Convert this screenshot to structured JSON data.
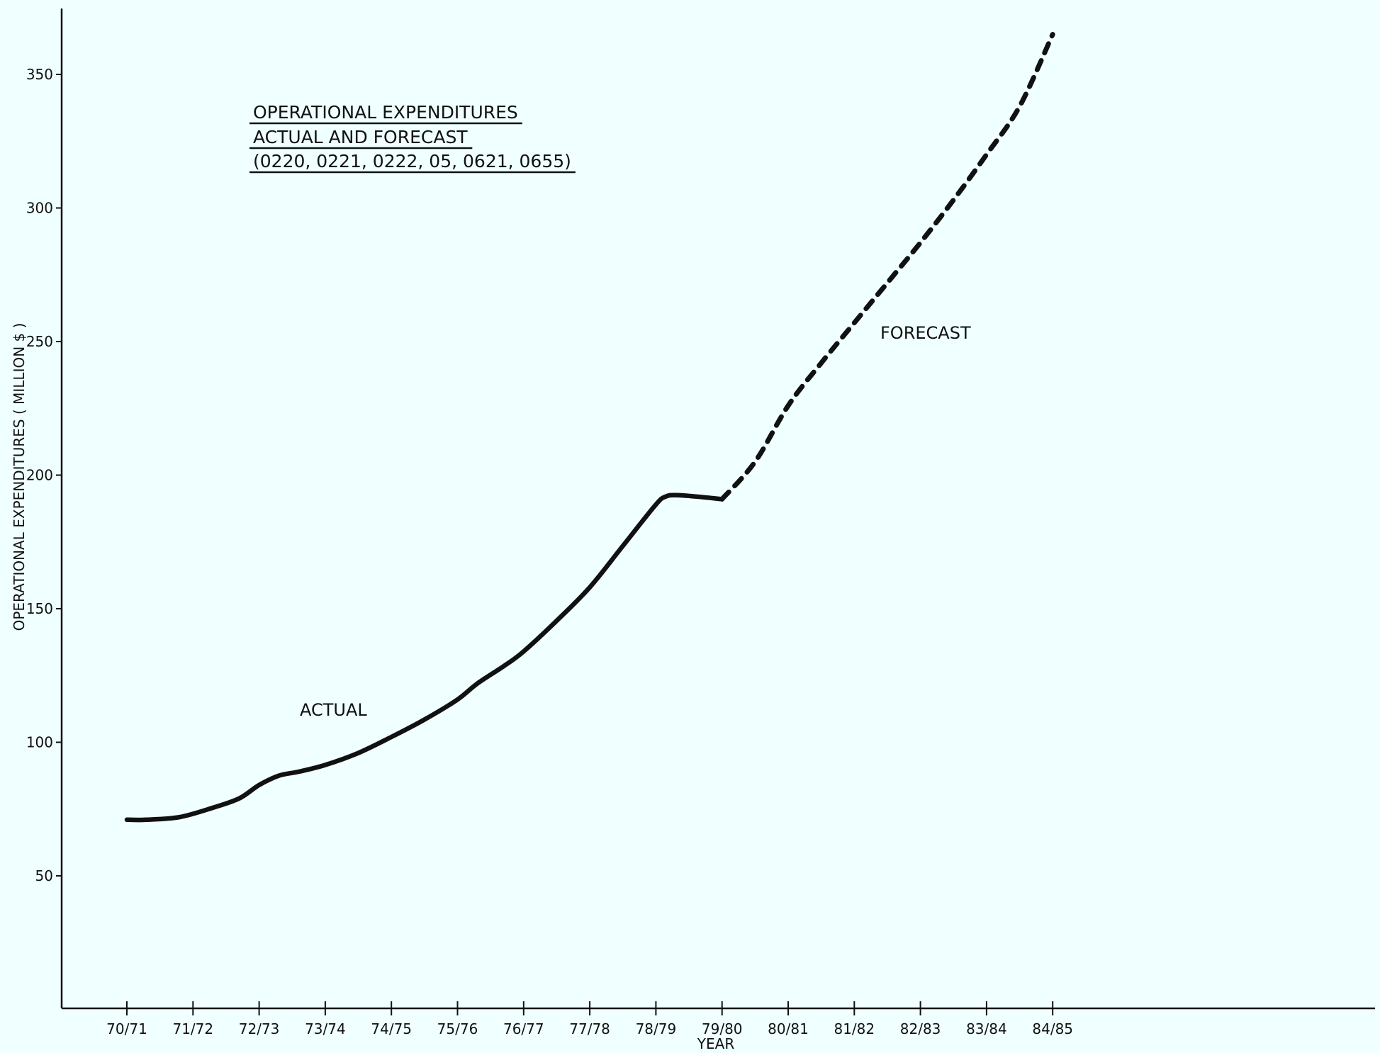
{
  "chart_data": {
    "type": "line",
    "title_lines": [
      "OPERATIONAL EXPENDITURES",
      "ACTUAL AND FORECAST",
      "(0220, 0221, 0222, 05, 0621, 0655)"
    ],
    "xlabel": "YEAR",
    "ylabel": "OPERATIONAL EXPENDITURES ( MILLION $ )",
    "categories": [
      "70/71",
      "71/72",
      "72/73",
      "73/74",
      "74/75",
      "75/76",
      "76/77",
      "77/78",
      "78/79",
      "79/80",
      "80/81",
      "81/82",
      "82/83",
      "83/84",
      "84/85"
    ],
    "ylim": [
      0,
      370
    ],
    "yticks": [
      50,
      100,
      150,
      200,
      250,
      300,
      350
    ],
    "grid": false,
    "series": [
      {
        "name": "ACTUAL",
        "style": "solid",
        "x": [
          0,
          0.3,
          0.8,
          1.3,
          1.7,
          2.0,
          2.3,
          2.6,
          3.0,
          3.5,
          4.0,
          4.5,
          5.0,
          5.3,
          5.7,
          6.0,
          6.5,
          7.0,
          7.5,
          8.0,
          8.15,
          8.3,
          8.6,
          9.0
        ],
        "values": [
          71,
          71,
          72,
          75.5,
          79,
          84,
          87.5,
          89,
          91.5,
          96,
          102,
          108.5,
          116,
          122,
          128.5,
          134,
          145.5,
          158,
          173.5,
          189,
          192,
          192.5,
          192,
          191
        ]
      },
      {
        "name": "FORECAST",
        "style": "dashed",
        "x": [
          9.0,
          9.5,
          10.0,
          10.5,
          11.0,
          11.5,
          12.0,
          12.5,
          13.0,
          13.5,
          14.0
        ],
        "values": [
          191,
          205,
          226,
          242,
          257,
          272,
          287,
          303,
          320,
          338,
          365
        ]
      }
    ],
    "annotations": [
      {
        "text": "ACTUAL"
      },
      {
        "text": "FORECAST"
      }
    ]
  }
}
